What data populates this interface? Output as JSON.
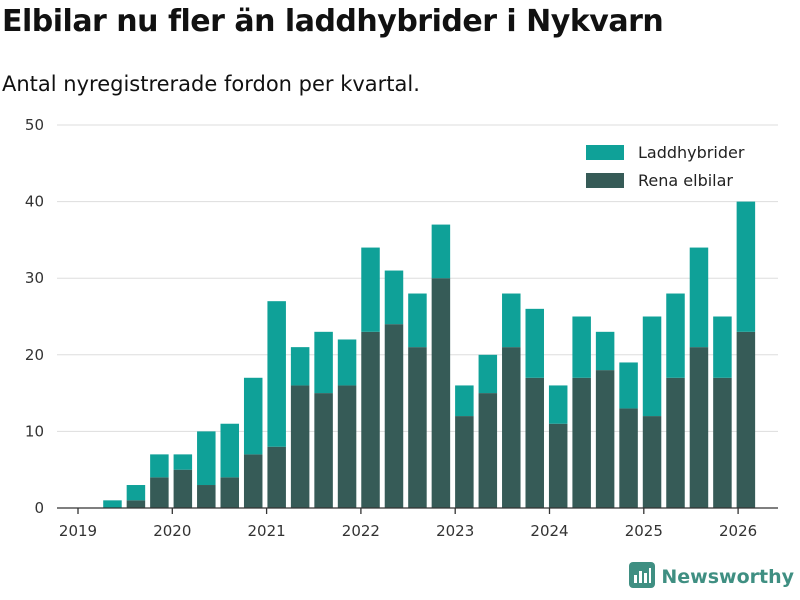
{
  "title": "Elbilar nu fler än laddhybrider i Nykvarn",
  "subtitle": "Antal nyregistrerade fordon per kvartal.",
  "brand": {
    "name": "Newsworthy",
    "icon": "bar-chart-logo-icon"
  },
  "colors": {
    "laddhybrider": "#0fa198",
    "rena_elbilar": "#365b57",
    "grid": "#dddddd",
    "axis": "#333333",
    "brand": "#3f8f82"
  },
  "chart_data": {
    "type": "bar",
    "stacked": true,
    "title": "Elbilar nu fler än laddhybrider i Nykvarn",
    "subtitle": "Antal nyregistrerade fordon per kvartal.",
    "xlabel": "",
    "ylabel": "",
    "ylim": [
      0,
      50
    ],
    "yticks": [
      0,
      10,
      20,
      30,
      40,
      50
    ],
    "xticks": [
      "2019",
      "2020",
      "2021",
      "2022",
      "2023",
      "2024",
      "2025",
      "2026"
    ],
    "categories": [
      "2019-Q1",
      "2019-Q2",
      "2019-Q3",
      "2019-Q4",
      "2020-Q1",
      "2020-Q2",
      "2020-Q3",
      "2020-Q4",
      "2021-Q1",
      "2021-Q2",
      "2021-Q3",
      "2021-Q4",
      "2022-Q1",
      "2022-Q2",
      "2022-Q3",
      "2022-Q4",
      "2023-Q1",
      "2023-Q2",
      "2023-Q3",
      "2023-Q4",
      "2024-Q1",
      "2024-Q2",
      "2024-Q3",
      "2024-Q4",
      "2025-Q1",
      "2025-Q2",
      "2025-Q3",
      "2025-Q4",
      "2026-Q1"
    ],
    "grid": true,
    "legend_position": "top-right",
    "series": [
      {
        "name": "Rena elbilar",
        "values": [
          0,
          0,
          1,
          4,
          5,
          3,
          4,
          7,
          8,
          16,
          15,
          16,
          23,
          24,
          21,
          30,
          12,
          15,
          21,
          17,
          11,
          17,
          18,
          13,
          12,
          17,
          21,
          17,
          23
        ]
      },
      {
        "name": "Laddhybrider",
        "values": [
          0,
          1,
          2,
          3,
          2,
          7,
          7,
          10,
          19,
          5,
          8,
          6,
          11,
          7,
          7,
          7,
          4,
          5,
          7,
          9,
          5,
          8,
          5,
          6,
          13,
          11,
          13,
          8,
          17
        ]
      }
    ],
    "legend": [
      "Laddhybrider",
      "Rena elbilar"
    ]
  }
}
